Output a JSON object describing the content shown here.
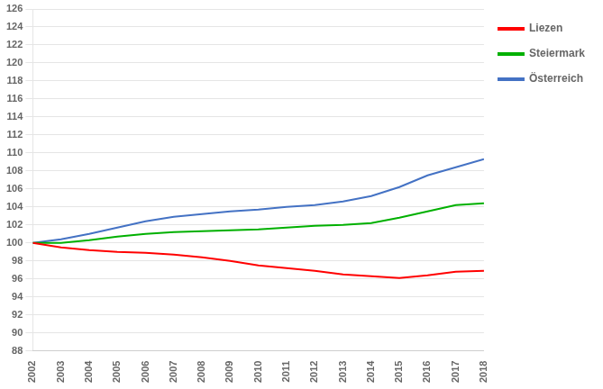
{
  "chart_data": {
    "type": "line",
    "x": [
      2002,
      2003,
      2004,
      2005,
      2006,
      2007,
      2008,
      2009,
      2010,
      2011,
      2012,
      2013,
      2014,
      2015,
      2016,
      2017,
      2018
    ],
    "series": [
      {
        "name": "Liezen",
        "color": "#ff0000",
        "values": [
          100.0,
          99.5,
          99.2,
          99.0,
          98.9,
          98.7,
          98.4,
          98.0,
          97.5,
          97.2,
          96.9,
          96.5,
          96.3,
          96.1,
          96.4,
          96.8,
          96.9
        ]
      },
      {
        "name": "Steiermark",
        "color": "#00b000",
        "values": [
          100.0,
          100.0,
          100.3,
          100.7,
          101.0,
          101.2,
          101.3,
          101.4,
          101.5,
          101.7,
          101.9,
          102.0,
          102.2,
          102.8,
          103.5,
          104.2,
          104.4
        ]
      },
      {
        "name": "Österreich",
        "color": "#4472c4",
        "values": [
          100.0,
          100.4,
          101.0,
          101.7,
          102.4,
          102.9,
          103.2,
          103.5,
          103.7,
          104.0,
          104.2,
          104.6,
          105.2,
          106.2,
          107.5,
          108.4,
          109.3
        ]
      }
    ],
    "xlim": [
      2002,
      2018
    ],
    "xticks": [
      2002,
      2003,
      2004,
      2005,
      2006,
      2007,
      2008,
      2009,
      2010,
      2011,
      2012,
      2013,
      2014,
      2015,
      2016,
      2017,
      2018
    ],
    "ylim": [
      88,
      126
    ],
    "yticks": [
      88,
      90,
      92,
      94,
      96,
      98,
      100,
      102,
      104,
      106,
      108,
      110,
      112,
      114,
      116,
      118,
      120,
      122,
      124,
      126
    ],
    "grid": "y",
    "legend": "right"
  }
}
